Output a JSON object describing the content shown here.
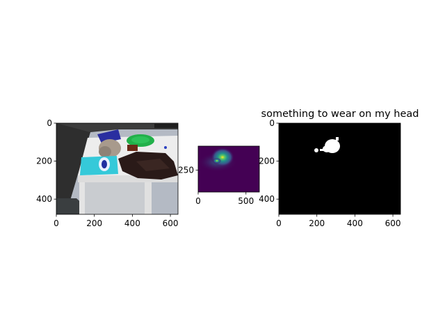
{
  "chart_data": [
    {
      "type": "image",
      "content": "rgb-camera-image",
      "title": "",
      "x_ticks": [
        "0",
        "200",
        "400",
        "600"
      ],
      "y_ticks": [
        "0",
        "200",
        "400"
      ],
      "xlim": [
        0,
        640
      ],
      "ylim": [
        480,
        0
      ],
      "scene": {
        "wall_color": "#3c3c3c",
        "floor_color": "#b4bac4",
        "table_color": "#e9e9e9",
        "items": [
          {
            "name": "blue-bag",
            "color": "#2a2ea0"
          },
          {
            "name": "gray-hat",
            "color": "#a89a8c"
          },
          {
            "name": "green-frisbee",
            "color": "#22b04a"
          },
          {
            "name": "brown-box",
            "color": "#6a2a18"
          },
          {
            "name": "cyan-package",
            "color": "#35c9d9"
          },
          {
            "name": "dark-cloth",
            "color": "#2a1a18"
          }
        ]
      }
    },
    {
      "type": "heatmap",
      "colormap": "viridis",
      "title": "",
      "x_ticks": [
        "0",
        "500"
      ],
      "y_ticks": [
        "250"
      ],
      "xlim": [
        0,
        640
      ],
      "ylim": [
        480,
        0
      ],
      "hotspot": {
        "x": 270,
        "y": 150,
        "peak": 1.0
      }
    },
    {
      "type": "image",
      "content": "binary-mask",
      "title": "something to wear on my head",
      "x_ticks": [
        "0",
        "200",
        "400",
        "600"
      ],
      "y_ticks": [
        "0",
        "200",
        "400"
      ],
      "xlim": [
        0,
        640
      ],
      "ylim": [
        480,
        0
      ],
      "blob": {
        "x": 280,
        "y": 120
      },
      "small_blob": {
        "x": 200,
        "y": 140
      }
    }
  ]
}
